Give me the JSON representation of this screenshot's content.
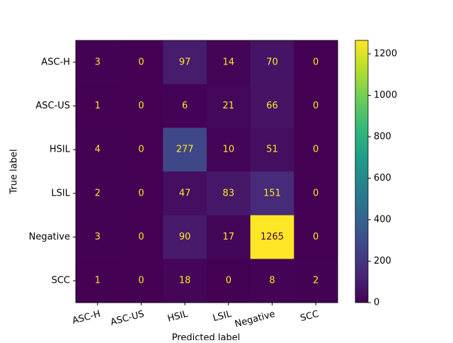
{
  "chart_data": {
    "type": "heatmap",
    "xlabel": "Predicted label",
    "ylabel": "True label",
    "categories": [
      "ASC-H",
      "ASC-US",
      "HSIL",
      "LSIL",
      "Negative",
      "SCC"
    ],
    "values": [
      [
        3,
        0,
        97,
        14,
        70,
        0
      ],
      [
        1,
        0,
        6,
        21,
        66,
        0
      ],
      [
        4,
        0,
        277,
        10,
        51,
        0
      ],
      [
        2,
        0,
        47,
        83,
        151,
        0
      ],
      [
        3,
        0,
        90,
        17,
        1265,
        0
      ],
      [
        1,
        0,
        18,
        0,
        8,
        2
      ]
    ],
    "colormap": "viridis",
    "zlim": [
      0,
      1265
    ],
    "zticks": [
      0,
      200,
      400,
      600,
      800,
      1000,
      1200
    ]
  }
}
